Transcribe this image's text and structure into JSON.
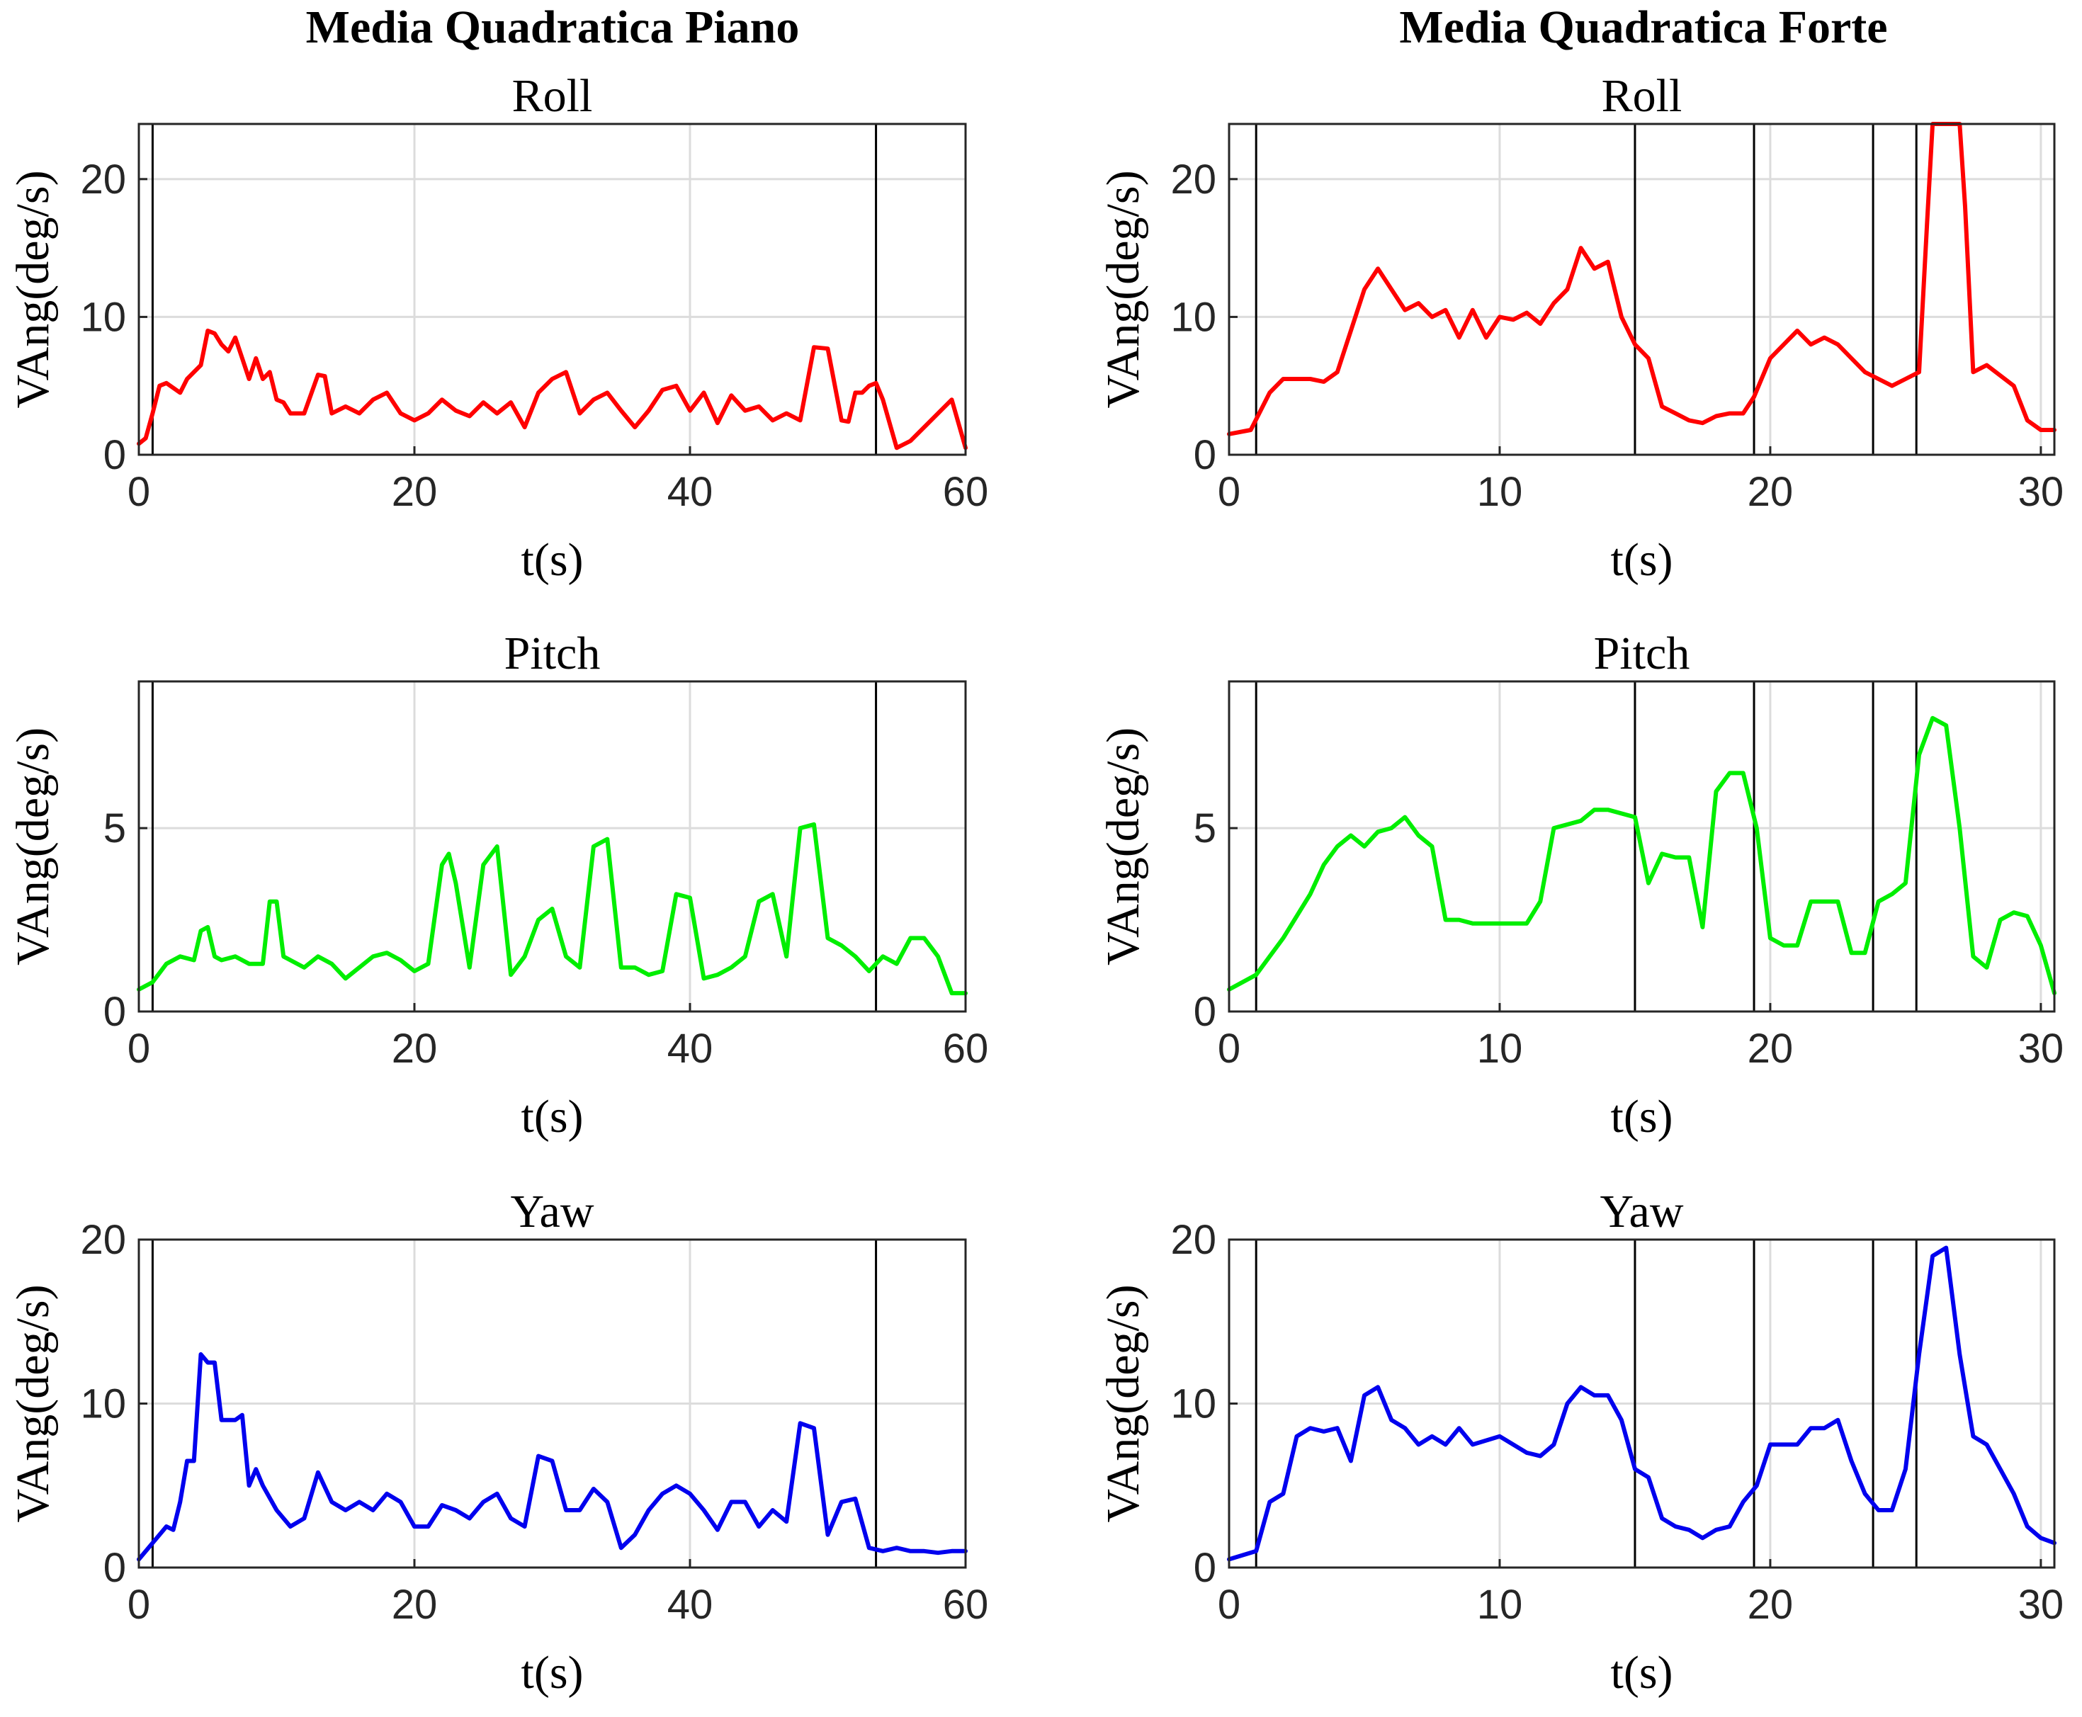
{
  "columns": [
    {
      "title": "Media Quadratica Piano"
    },
    {
      "title": "Media Quadratica Forte"
    }
  ],
  "colors": {
    "roll": "#ff0000",
    "pitch": "#00ee00",
    "yaw": "#0000ee",
    "markers": "#000000",
    "grid": "#dcdcdc"
  },
  "chart_data": [
    {
      "type": "line",
      "column": 0,
      "row": 0,
      "title": "Roll",
      "xlabel": "t(s)",
      "ylabel": "VAng(deg/s)",
      "xlim": [
        0,
        60
      ],
      "ylim": [
        0,
        24
      ],
      "xticks": [
        0,
        20,
        40,
        60
      ],
      "yticks": [
        0,
        10,
        20
      ],
      "grid": true,
      "color": "#ff0000",
      "markers": [
        1,
        53.5
      ],
      "x": [
        0,
        0.5,
        1,
        1.5,
        2,
        3,
        3.5,
        4,
        4.5,
        5,
        5.5,
        6,
        6.5,
        7,
        7.5,
        8,
        8.5,
        9,
        9.5,
        10,
        10.5,
        11,
        12,
        13,
        13.5,
        14,
        15,
        16,
        17,
        18,
        19,
        20,
        21,
        22,
        23,
        24,
        25,
        26,
        27,
        28,
        29,
        30,
        31,
        32,
        33,
        34,
        35,
        36,
        37,
        38,
        39,
        40,
        41,
        42,
        43,
        44,
        45,
        46,
        47,
        48,
        49,
        50,
        51,
        51.5,
        52,
        52.5,
        53,
        53.5,
        54,
        55,
        56,
        57,
        58,
        59,
        60
      ],
      "values": [
        0.8,
        1.2,
        3,
        5,
        5.2,
        4.5,
        5.5,
        6,
        6.5,
        9,
        8.8,
        8,
        7.5,
        8.5,
        7,
        5.5,
        7,
        5.5,
        6,
        4,
        3.8,
        3,
        3,
        5.8,
        5.7,
        3,
        3.5,
        3,
        4,
        4.5,
        3,
        2.5,
        3,
        4,
        3.2,
        2.8,
        3.8,
        3,
        3.8,
        2,
        4.5,
        5.5,
        6,
        3,
        4,
        4.5,
        3.2,
        2,
        3.2,
        4.7,
        5,
        3.2,
        4.5,
        2.3,
        4.3,
        3.2,
        3.5,
        2.5,
        3,
        2.5,
        7.8,
        7.7,
        2.5,
        2.4,
        4.5,
        4.5,
        5,
        5.2,
        4,
        0.5,
        1,
        2,
        3,
        4,
        0.5
      ]
    },
    {
      "type": "line",
      "column": 0,
      "row": 1,
      "title": "Pitch",
      "xlabel": "t(s)",
      "ylabel": "VAng(deg/s)",
      "xlim": [
        0,
        60
      ],
      "ylim": [
        0,
        9
      ],
      "xticks": [
        0,
        20,
        40,
        60
      ],
      "yticks": [
        0,
        5
      ],
      "grid": true,
      "color": "#00ee00",
      "markers": [
        1,
        53.5
      ],
      "x": [
        0,
        1,
        2,
        3,
        4,
        4.5,
        5,
        5.5,
        6,
        7,
        8,
        9,
        9.5,
        10,
        10.5,
        11,
        12,
        13,
        14,
        15,
        16,
        17,
        18,
        19,
        20,
        21,
        22,
        22.5,
        23,
        24,
        25,
        26,
        27,
        28,
        29,
        30,
        31,
        32,
        33,
        34,
        35,
        36,
        37,
        38,
        39,
        40,
        41,
        42,
        43,
        44,
        45,
        46,
        47,
        48,
        49,
        50,
        51,
        52,
        53,
        54,
        55,
        56,
        57,
        58,
        59,
        60
      ],
      "values": [
        0.6,
        0.8,
        1.3,
        1.5,
        1.4,
        2.2,
        2.3,
        1.5,
        1.4,
        1.5,
        1.3,
        1.3,
        3,
        3,
        1.5,
        1.4,
        1.2,
        1.5,
        1.3,
        0.9,
        1.2,
        1.5,
        1.6,
        1.4,
        1.1,
        1.3,
        4,
        4.3,
        3.5,
        1.2,
        4,
        4.5,
        1,
        1.5,
        2.5,
        2.8,
        1.5,
        1.2,
        4.5,
        4.7,
        1.2,
        1.2,
        1,
        1.1,
        3.2,
        3.1,
        0.9,
        1,
        1.2,
        1.5,
        3,
        3.2,
        1.5,
        5,
        5.1,
        2,
        1.8,
        1.5,
        1.1,
        1.5,
        1.3,
        2,
        2,
        1.5,
        0.5,
        0.5
      ]
    },
    {
      "type": "line",
      "column": 0,
      "row": 2,
      "title": "Yaw",
      "xlabel": "t(s)",
      "ylabel": "VAng(deg/s)",
      "xlim": [
        0,
        60
      ],
      "ylim": [
        0,
        20
      ],
      "xticks": [
        0,
        20,
        40,
        60
      ],
      "yticks": [
        0,
        10,
        20
      ],
      "grid": true,
      "color": "#0000ee",
      "markers": [
        1,
        53.5
      ],
      "x": [
        0,
        1,
        2,
        2.5,
        3,
        3.5,
        4,
        4.5,
        5,
        5.5,
        6,
        6.5,
        7,
        7.5,
        8,
        8.5,
        9,
        10,
        11,
        12,
        13,
        14,
        15,
        16,
        17,
        18,
        19,
        20,
        21,
        22,
        23,
        24,
        25,
        26,
        27,
        28,
        29,
        30,
        31,
        32,
        33,
        34,
        35,
        36,
        37,
        38,
        39,
        40,
        41,
        42,
        43,
        44,
        45,
        46,
        47,
        48,
        49,
        50,
        51,
        52,
        53,
        54,
        55,
        56,
        57,
        58,
        59,
        60
      ],
      "values": [
        0.5,
        1.5,
        2.5,
        2.3,
        4,
        6.5,
        6.5,
        13,
        12.5,
        12.5,
        9,
        9,
        9,
        9.3,
        5,
        6,
        5,
        3.5,
        2.5,
        3,
        5.8,
        4,
        3.5,
        4,
        3.5,
        4.5,
        4,
        2.5,
        2.5,
        3.8,
        3.5,
        3,
        4,
        4.5,
        3,
        2.5,
        6.8,
        6.5,
        3.5,
        3.5,
        4.8,
        4,
        1.2,
        2,
        3.5,
        4.5,
        5,
        4.5,
        3.5,
        2.3,
        4,
        4,
        2.5,
        3.5,
        2.8,
        8.8,
        8.5,
        2,
        4,
        4.2,
        1.2,
        1,
        1.2,
        1,
        1,
        0.9,
        1,
        1
      ]
    },
    {
      "type": "line",
      "column": 1,
      "row": 0,
      "title": "Roll",
      "xlabel": "t(s)",
      "ylabel": "VAng(deg/s)",
      "xlim": [
        0,
        30.5
      ],
      "ylim": [
        0,
        24
      ],
      "xticks": [
        0,
        10,
        20,
        30
      ],
      "yticks": [
        0,
        10,
        20
      ],
      "grid": true,
      "color": "#ff0000",
      "markers": [
        1,
        15,
        19.4,
        23.8,
        25.4
      ],
      "x": [
        0,
        0.8,
        1.5,
        2,
        3,
        3.5,
        4,
        5,
        5.5,
        6,
        6.5,
        7,
        7.5,
        8,
        8.5,
        9,
        9.5,
        10,
        10.5,
        11,
        11.5,
        12,
        12.5,
        13,
        13.5,
        14,
        14.5,
        15,
        15.5,
        16,
        16.5,
        17,
        17.5,
        18,
        18.5,
        19,
        19.4,
        20,
        20.5,
        21,
        21.5,
        22,
        22.5,
        23,
        23.5,
        24,
        24.5,
        25,
        25.5,
        25.8,
        26,
        27,
        27.2,
        27.5,
        28,
        29,
        29.5,
        30,
        30.5
      ],
      "values": [
        1.5,
        1.8,
        4.5,
        5.5,
        5.5,
        5.3,
        6,
        12,
        13.5,
        12,
        10.5,
        11,
        10,
        10.5,
        8.5,
        10.5,
        8.5,
        10,
        9.8,
        10.3,
        9.5,
        11,
        12,
        15,
        13.5,
        14,
        10,
        8,
        7,
        3.5,
        3,
        2.5,
        2.3,
        2.8,
        3,
        3,
        4.2,
        7,
        8,
        9,
        8,
        8.5,
        8,
        7,
        6,
        5.5,
        5,
        5.5,
        6,
        17,
        24,
        24,
        18,
        6,
        6.5,
        5,
        2.5,
        1.8,
        1.8
      ]
    },
    {
      "type": "line",
      "column": 1,
      "row": 1,
      "title": "Pitch",
      "xlabel": "t(s)",
      "ylabel": "VAng(deg/s)",
      "xlim": [
        0,
        30.5
      ],
      "ylim": [
        0,
        9
      ],
      "xticks": [
        0,
        10,
        20,
        30
      ],
      "yticks": [
        0,
        5
      ],
      "grid": true,
      "color": "#00ee00",
      "markers": [
        1,
        15,
        19.4,
        23.8,
        25.4
      ],
      "x": [
        0,
        1,
        2,
        3,
        3.5,
        4,
        4.5,
        5,
        5.5,
        6,
        6.5,
        7,
        7.5,
        8,
        8.5,
        9,
        10,
        11,
        11.5,
        12,
        13,
        13.5,
        14,
        15,
        15.5,
        16,
        16.5,
        17,
        17.5,
        18,
        18.5,
        19,
        19.5,
        20,
        20.5,
        21,
        21.5,
        22,
        22.5,
        23,
        23.5,
        24,
        24.5,
        25,
        25.5,
        26,
        26.5,
        27,
        27.5,
        28,
        28.5,
        29,
        29.5,
        30,
        30.5
      ],
      "values": [
        0.6,
        1,
        2,
        3.2,
        4,
        4.5,
        4.8,
        4.5,
        4.9,
        5,
        5.3,
        4.8,
        4.5,
        2.5,
        2.5,
        2.4,
        2.4,
        2.4,
        3,
        5,
        5.2,
        5.5,
        5.5,
        5.3,
        3.5,
        4.3,
        4.2,
        4.2,
        2.3,
        6,
        6.5,
        6.5,
        5,
        2,
        1.8,
        1.8,
        3,
        3,
        3,
        1.6,
        1.6,
        3,
        3.2,
        3.5,
        7,
        8,
        7.8,
        5,
        1.5,
        1.2,
        2.5,
        2.7,
        2.6,
        1.8,
        0.5
      ]
    },
    {
      "type": "line",
      "column": 1,
      "row": 2,
      "title": "Yaw",
      "xlabel": "t(s)",
      "ylabel": "VAng(deg/s)",
      "xlim": [
        0,
        30.5
      ],
      "ylim": [
        0,
        20
      ],
      "xticks": [
        0,
        10,
        20,
        30
      ],
      "yticks": [
        0,
        10,
        20
      ],
      "grid": true,
      "color": "#0000ee",
      "markers": [
        1,
        15,
        19.4,
        23.8,
        25.4
      ],
      "x": [
        0,
        1,
        1.5,
        2,
        2.5,
        3,
        3.5,
        4,
        4.5,
        5,
        5.5,
        6,
        6.5,
        7,
        7.5,
        8,
        8.5,
        9,
        10,
        11,
        11.5,
        12,
        12.5,
        13,
        13.5,
        14,
        14.5,
        15,
        15.5,
        16,
        16.5,
        17,
        17.5,
        18,
        18.5,
        19,
        19.5,
        20,
        20.5,
        21,
        21.5,
        22,
        22.5,
        23,
        23.5,
        24,
        24.5,
        25,
        25.5,
        26,
        26.5,
        27,
        27.5,
        28,
        28.5,
        29,
        29.5,
        30,
        30.5
      ],
      "values": [
        0.5,
        1,
        4,
        4.5,
        8,
        8.5,
        8.3,
        8.5,
        6.5,
        10.5,
        11,
        9,
        8.5,
        7.5,
        8,
        7.5,
        8.5,
        7.5,
        8,
        7,
        6.8,
        7.5,
        10,
        11,
        10.5,
        10.5,
        9,
        6,
        5.5,
        3,
        2.5,
        2.3,
        1.8,
        2.3,
        2.5,
        4,
        5,
        7.5,
        7.5,
        7.5,
        8.5,
        8.5,
        9,
        6.5,
        4.5,
        3.5,
        3.5,
        6,
        13,
        19,
        19.5,
        13,
        8,
        7.5,
        6,
        4.5,
        2.5,
        1.8,
        1.5
      ]
    }
  ]
}
